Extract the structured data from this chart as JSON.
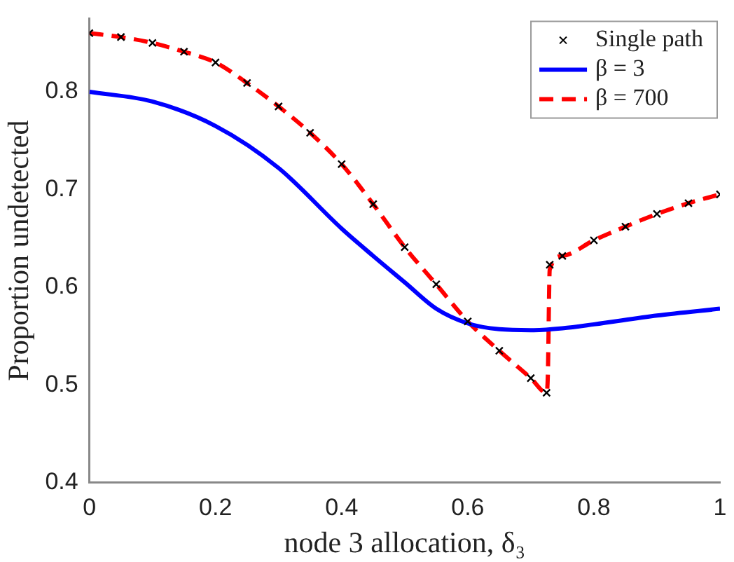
{
  "chart_data": {
    "type": "line",
    "xlabel": "node 3 allocation, δ₃",
    "ylabel": "Proportion undetected",
    "xlim": [
      0,
      1
    ],
    "xticks": [
      0,
      0.2,
      0.4,
      0.6,
      0.8,
      1
    ],
    "ylim": [
      0.4,
      0.875
    ],
    "yticks": [
      0.4,
      0.5,
      0.6,
      0.7,
      0.8
    ],
    "grid": false,
    "legend": "top right",
    "series": [
      {
        "name": "Single path",
        "type": "scatter",
        "marker": "cross",
        "color": "#000000",
        "x": [
          0,
          0.05,
          0.1,
          0.15,
          0.2,
          0.25,
          0.3,
          0.35,
          0.4,
          0.45,
          0.5,
          0.55,
          0.6,
          0.65,
          0.7,
          0.725,
          0.73,
          0.75,
          0.8,
          0.85,
          0.9,
          0.95,
          1
        ],
        "values": [
          0.86,
          0.856,
          0.85,
          0.841,
          0.83,
          0.809,
          0.785,
          0.758,
          0.726,
          0.685,
          0.641,
          0.603,
          0.565,
          0.535,
          0.507,
          0.492,
          0.623,
          0.632,
          0.648,
          0.662,
          0.675,
          0.686,
          0.695
        ]
      },
      {
        "name": "β = 3",
        "color": "#0000ff",
        "line_style": "solid",
        "marker": "none",
        "x": [
          0,
          0.1,
          0.2,
          0.3,
          0.4,
          0.45,
          0.5,
          0.55,
          0.6,
          0.65,
          0.7,
          0.75,
          0.8,
          0.9,
          1
        ],
        "values": [
          0.8,
          0.79,
          0.765,
          0.722,
          0.66,
          0.632,
          0.605,
          0.578,
          0.563,
          0.557,
          0.556,
          0.558,
          0.562,
          0.571,
          0.578
        ]
      },
      {
        "name": "β = 700",
        "color": "#ff0000",
        "line_style": "dashed",
        "marker": "none",
        "x": [
          0,
          0.05,
          0.1,
          0.15,
          0.2,
          0.25,
          0.3,
          0.35,
          0.4,
          0.45,
          0.5,
          0.55,
          0.6,
          0.65,
          0.7,
          0.725,
          0.727,
          0.73,
          0.75,
          0.8,
          0.85,
          0.9,
          0.95,
          1
        ],
        "values": [
          0.86,
          0.856,
          0.85,
          0.841,
          0.83,
          0.809,
          0.785,
          0.758,
          0.726,
          0.685,
          0.641,
          0.603,
          0.565,
          0.535,
          0.507,
          0.492,
          0.51,
          0.618,
          0.632,
          0.648,
          0.662,
          0.675,
          0.686,
          0.695
        ]
      }
    ]
  }
}
